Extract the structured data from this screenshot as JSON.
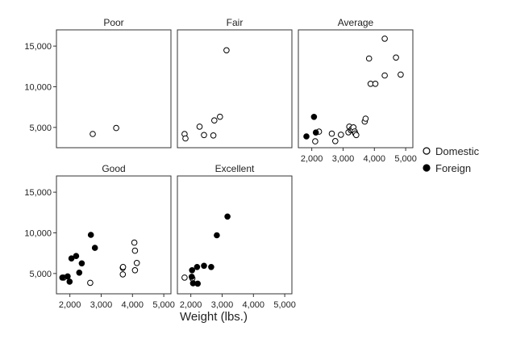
{
  "chart_data": {
    "type": "scatter",
    "title": "",
    "xlabel": "Weight (lbs.)",
    "ylabel": "",
    "xlim": [
      1700,
      5100
    ],
    "ylim": [
      3000,
      16500
    ],
    "x_ticks": [
      2000,
      3000,
      4000,
      5000
    ],
    "x_tick_labels": [
      "2,000",
      "3,000",
      "4,000",
      "5,000"
    ],
    "y_ticks": [
      5000,
      10000,
      15000
    ],
    "y_tick_labels": [
      "5,000",
      "10,000",
      "15,000"
    ],
    "grid": false,
    "legend_position": "right",
    "series_styles": [
      {
        "name": "Domestic",
        "marker": "hollow-circle",
        "color": "#000000"
      },
      {
        "name": "Foreign",
        "marker": "filled-circle",
        "color": "#000000"
      }
    ],
    "panels": [
      {
        "title": "Poor",
        "series": [
          {
            "name": "Domestic",
            "points": [
              [
                2730,
                4190
              ],
              [
                3480,
                4930
              ]
            ]
          },
          {
            "name": "Foreign",
            "points": []
          }
        ]
      },
      {
        "title": "Fair",
        "series": [
          {
            "name": "Domestic",
            "points": [
              [
                1800,
                4180
              ],
              [
                1830,
                3650
              ],
              [
                2280,
                5090
              ],
              [
                2420,
                4060
              ],
              [
                2720,
                4010
              ],
              [
                2750,
                5860
              ],
              [
                2930,
                6310
              ],
              [
                3140,
                14480
              ]
            ]
          },
          {
            "name": "Foreign",
            "points": []
          }
        ]
      },
      {
        "title": "Average",
        "series": [
          {
            "name": "Domestic",
            "points": [
              [
                2110,
                3290
              ],
              [
                2230,
                4480
              ],
              [
                2640,
                4230
              ],
              [
                2750,
                3320
              ],
              [
                2930,
                4100
              ],
              [
                3170,
                4400
              ],
              [
                3200,
                5090
              ],
              [
                3250,
                4650
              ],
              [
                3280,
                4810
              ],
              [
                3310,
                4700
              ],
              [
                3330,
                5010
              ],
              [
                3370,
                4500
              ],
              [
                3390,
                4250
              ],
              [
                3420,
                4060
              ],
              [
                3690,
                5720
              ],
              [
                3720,
                6080
              ],
              [
                3830,
                13470
              ],
              [
                3880,
                10370
              ],
              [
                4030,
                10370
              ],
              [
                4330,
                11390
              ],
              [
                4330,
                15910
              ],
              [
                4690,
                13590
              ],
              [
                4840,
                11500
              ]
            ]
          },
          {
            "name": "Foreign",
            "points": [
              [
                1830,
                3890
              ],
              [
                2070,
                6300
              ],
              [
                2130,
                4370
              ]
            ]
          }
        ]
      },
      {
        "title": "Good",
        "series": [
          {
            "name": "Domestic",
            "points": [
              [
                1800,
                4500
              ],
              [
                2650,
                3850
              ],
              [
                3690,
                5700
              ],
              [
                3690,
                4900
              ],
              [
                3700,
                5800
              ],
              [
                4060,
                8800
              ],
              [
                4080,
                7800
              ],
              [
                4080,
                5400
              ],
              [
                4140,
                6300
              ]
            ]
          },
          {
            "name": "Foreign",
            "points": [
              [
                1760,
                4500
              ],
              [
                1930,
                4650
              ],
              [
                1990,
                4000
              ],
              [
                2050,
                6850
              ],
              [
                2200,
                7150
              ],
              [
                2300,
                5100
              ],
              [
                2380,
                6250
              ],
              [
                2670,
                9750
              ],
              [
                2800,
                8150
              ]
            ]
          }
        ]
      },
      {
        "title": "Excellent",
        "series": [
          {
            "name": "Domestic",
            "points": [
              [
                1800,
                4500
              ],
              [
                2050,
                4400
              ]
            ]
          },
          {
            "name": "Foreign",
            "points": [
              [
                2030,
                4600
              ],
              [
                2040,
                5400
              ],
              [
                2070,
                3800
              ],
              [
                2200,
                5800
              ],
              [
                2220,
                3750
              ],
              [
                2420,
                5950
              ],
              [
                2650,
                5800
              ],
              [
                2830,
                9700
              ],
              [
                3170,
                12000
              ]
            ]
          }
        ]
      }
    ]
  }
}
